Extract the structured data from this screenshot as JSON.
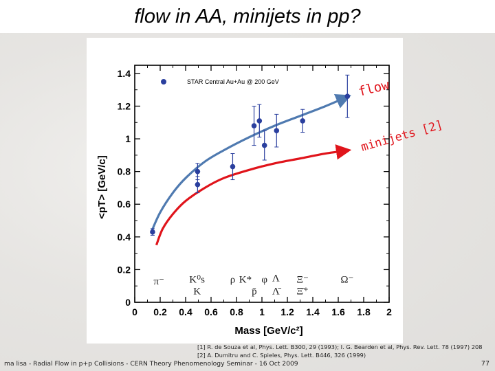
{
  "slide": {
    "title": "flow in AA, minijets in pp?",
    "footer": "ma lisa - Radial Flow in p+p Collisions - CERN Theory Phenomenology Seminar - 16 Oct 2009",
    "page_number": "77",
    "references": [
      "[1] R. de Souza et al, Phys. Lett. B300, 29 (1993); I. G. Bearden et al, Phys. Rev. Lett. 78 (1997) 208",
      "[2] A. Dumitru and C. Spieles, Phys. Lett. B446, 326 (1999)"
    ]
  },
  "chart_data": {
    "type": "scatter",
    "xlabel": "Mass [GeV/c²]",
    "ylabel": "<pT> [GeV/c]",
    "xlim": [
      0,
      2
    ],
    "ylim": [
      0,
      1.45
    ],
    "xticks": [
      0,
      0.2,
      0.4,
      0.6,
      0.8,
      1,
      1.2,
      1.4,
      1.6,
      1.8,
      2
    ],
    "xtick_labels": [
      "0",
      "0.2",
      "0.4",
      "0.6",
      "0.8",
      "1",
      "1.2",
      "1.4",
      "1.6",
      "1.8",
      "2"
    ],
    "yticks": [
      0,
      0.2,
      0.4,
      0.6,
      0.8,
      1,
      1.2,
      1.4
    ],
    "ytick_labels": [
      "0",
      "0.2",
      "0.4",
      "0.6",
      "0.8",
      "1",
      "1.2",
      "1.4"
    ],
    "legend": {
      "label": "STAR Central Au+Au @ 200 GeV",
      "position": "top-left"
    },
    "series": [
      {
        "name": "STAR Central Au+Au @ 200 GeV",
        "color": "#2a3f9e",
        "points": [
          {
            "x": 0.14,
            "y": 0.43,
            "err": 0.02
          },
          {
            "x": 0.494,
            "y": 0.8,
            "err": 0.05
          },
          {
            "x": 0.494,
            "y": 0.72,
            "err": 0.05
          },
          {
            "x": 0.77,
            "y": 0.83,
            "err": 0.08
          },
          {
            "x": 0.938,
            "y": 1.08,
            "err": 0.12
          },
          {
            "x": 0.98,
            "y": 1.11,
            "err": 0.1
          },
          {
            "x": 1.02,
            "y": 0.96,
            "err": 0.09
          },
          {
            "x": 1.115,
            "y": 1.05,
            "err": 0.1
          },
          {
            "x": 1.32,
            "y": 1.11,
            "err": 0.07
          },
          {
            "x": 1.672,
            "y": 1.26,
            "err": 0.13
          }
        ]
      }
    ],
    "curves": [
      {
        "name": "flow",
        "color": "#4f7ab0",
        "arrow": true,
        "points": [
          [
            0.13,
            0.43
          ],
          [
            0.2,
            0.55
          ],
          [
            0.3,
            0.67
          ],
          [
            0.4,
            0.76
          ],
          [
            0.55,
            0.86
          ],
          [
            0.7,
            0.93
          ],
          [
            0.9,
            1.01
          ],
          [
            1.1,
            1.08
          ],
          [
            1.3,
            1.14
          ],
          [
            1.5,
            1.2
          ],
          [
            1.68,
            1.26
          ]
        ]
      },
      {
        "name": "minijets",
        "color": "#e0141b",
        "arrow": true,
        "points": [
          [
            0.17,
            0.35
          ],
          [
            0.22,
            0.45
          ],
          [
            0.3,
            0.54
          ],
          [
            0.4,
            0.62
          ],
          [
            0.55,
            0.7
          ],
          [
            0.7,
            0.76
          ],
          [
            0.9,
            0.81
          ],
          [
            1.1,
            0.85
          ],
          [
            1.3,
            0.88
          ],
          [
            1.5,
            0.91
          ],
          [
            1.68,
            0.93
          ]
        ]
      }
    ],
    "particle_labels": [
      {
        "text": "π⁻",
        "x": 0.19,
        "y": 0.13
      },
      {
        "text": "K⁰s",
        "x": 0.49,
        "y": 0.14
      },
      {
        "text": "K",
        "x": 0.49,
        "y": 0.07
      },
      {
        "text": "ρ",
        "x": 0.77,
        "y": 0.14
      },
      {
        "text": "K*",
        "x": 0.87,
        "y": 0.14
      },
      {
        "text": "p̄",
        "x": 0.94,
        "y": 0.07
      },
      {
        "text": "φ",
        "x": 1.02,
        "y": 0.14
      },
      {
        "text": "Λ",
        "x": 1.11,
        "y": 0.15
      },
      {
        "text": "Λ̄",
        "x": 1.11,
        "y": 0.07
      },
      {
        "text": "Ξ⁻",
        "x": 1.32,
        "y": 0.14
      },
      {
        "text": "Ξ̄⁺",
        "x": 1.32,
        "y": 0.07
      },
      {
        "text": "Ω⁻",
        "x": 1.67,
        "y": 0.14
      }
    ],
    "annotations": [
      {
        "text": "flow",
        "color": "#e0141b"
      },
      {
        "text": "minijets [2]",
        "color": "#e0141b"
      }
    ]
  }
}
